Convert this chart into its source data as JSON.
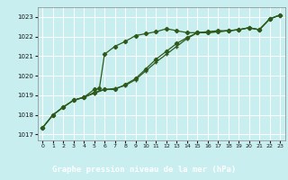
{
  "title": "Graphe pression niveau de la mer (hPa)",
  "plot_bg": "#c8eef0",
  "bottom_bg": "#2d6a2d",
  "title_color": "#ffffff",
  "line_color": "#2d5a1b",
  "xlim": [
    -0.5,
    23.5
  ],
  "ylim": [
    1016.7,
    1023.5
  ],
  "yticks": [
    1017,
    1018,
    1019,
    1020,
    1021,
    1022,
    1023
  ],
  "xticks": [
    0,
    1,
    2,
    3,
    4,
    5,
    6,
    7,
    8,
    9,
    10,
    11,
    12,
    13,
    14,
    15,
    16,
    17,
    18,
    19,
    20,
    21,
    22,
    23
  ],
  "series1_x": [
    0,
    1,
    2,
    3,
    4,
    5,
    5.5,
    6,
    7,
    8,
    9,
    10,
    11,
    12,
    13,
    14,
    15,
    16,
    17,
    18,
    19,
    20,
    21,
    22,
    23
  ],
  "series1_y": [
    1017.35,
    1018.0,
    1018.4,
    1018.75,
    1018.9,
    1019.3,
    1019.35,
    1021.1,
    1021.5,
    1021.75,
    1022.05,
    1022.15,
    1022.25,
    1022.4,
    1022.3,
    1022.2,
    1022.2,
    1022.25,
    1022.3,
    1022.3,
    1022.35,
    1022.45,
    1022.35,
    1022.9,
    1023.1
  ],
  "series2_x": [
    0,
    1,
    2,
    3,
    4,
    5,
    6,
    7,
    8,
    9,
    10,
    11,
    12,
    13,
    14,
    15,
    16,
    17,
    18,
    19,
    20,
    21,
    22,
    23
  ],
  "series2_y": [
    1017.35,
    1018.0,
    1018.4,
    1018.75,
    1018.9,
    1019.15,
    1019.3,
    1019.3,
    1019.55,
    1019.85,
    1020.35,
    1020.85,
    1021.25,
    1021.65,
    1021.95,
    1022.2,
    1022.2,
    1022.25,
    1022.3,
    1022.35,
    1022.45,
    1022.35,
    1022.9,
    1023.1
  ],
  "series3_x": [
    0,
    1,
    2,
    3,
    4,
    5,
    6,
    7,
    8,
    9,
    10,
    11,
    12,
    13,
    14,
    15,
    16,
    17,
    18,
    19,
    20,
    21,
    22,
    23
  ],
  "series3_y": [
    1017.35,
    1018.0,
    1018.4,
    1018.75,
    1018.9,
    1019.1,
    1019.3,
    1019.35,
    1019.5,
    1019.8,
    1020.25,
    1020.7,
    1021.1,
    1021.5,
    1021.9,
    1022.2,
    1022.2,
    1022.25,
    1022.3,
    1022.35,
    1022.45,
    1022.35,
    1022.9,
    1023.1
  ]
}
